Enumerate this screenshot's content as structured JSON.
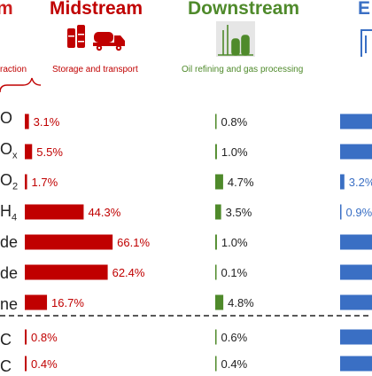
{
  "colors": {
    "upstream": "#cc1f1f",
    "midstream": "#c00000",
    "downstream": "#4f8a2b",
    "enduse": "#3a6fc4",
    "divider": "#222222"
  },
  "headers": {
    "upstream_partial": "m",
    "midstream": "Midstream",
    "downstream": "Downstream",
    "enduse_partial": "E"
  },
  "subtitles": {
    "upstream_partial": "raction",
    "midstream": "Storage and transport",
    "downstream": "Oil refining and gas processing"
  },
  "icons": {
    "midstream": [
      "oil-barrels-icon",
      "tanker-truck-icon"
    ],
    "downstream": "refinery-icon",
    "enduse": "building-icon"
  },
  "rows": [
    {
      "base": "O",
      "sub": ""
    },
    {
      "base": "O",
      "sub": "x"
    },
    {
      "base": "O",
      "sub": "2"
    },
    {
      "base": "H",
      "sub": "4"
    },
    {
      "base": "de",
      "sub": ""
    },
    {
      "base": "de",
      "sub": ""
    },
    {
      "base": "ne",
      "sub": ""
    },
    {
      "base": "C",
      "sub": ""
    },
    {
      "base": "C",
      "sub": ""
    }
  ],
  "chart_data": {
    "type": "bar",
    "unit": "%",
    "categories": [
      "O",
      "Ox",
      "O2",
      "H4",
      "de",
      "de",
      "ne",
      "C",
      "C"
    ],
    "series": [
      {
        "name": "Midstream",
        "values": [
          3.1,
          5.5,
          1.7,
          44.3,
          66.1,
          62.4,
          16.7,
          0.8,
          0.4
        ],
        "labels": [
          "3.1%",
          "5.5%",
          "1.7%",
          "44.3%",
          "66.1%",
          "62.4%",
          "16.7%",
          "0.8%",
          "0.4%"
        ]
      },
      {
        "name": "Downstream",
        "values": [
          0.8,
          1.0,
          4.7,
          3.5,
          1.0,
          0.1,
          4.8,
          0.6,
          0.4
        ],
        "labels": [
          "0.8%",
          "1.0%",
          "4.7%",
          "3.5%",
          "1.0%",
          "0.1%",
          "4.8%",
          "0.6%",
          "0.4%"
        ]
      },
      {
        "name": "End use",
        "values": [
          null,
          null,
          3.2,
          0.9,
          null,
          null,
          null,
          null,
          null
        ],
        "labels": [
          "",
          "",
          "3.2%",
          "0.9%",
          "",
          "",
          "",
          "",
          ""
        ]
      }
    ],
    "divider_after_row": 6
  }
}
